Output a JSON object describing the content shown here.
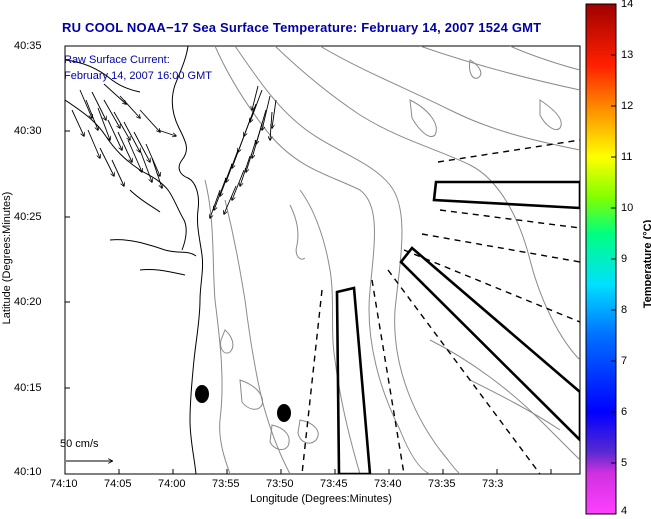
{
  "title": "RU COOL  NOAA−17  Sea Surface Temperature:  February 14, 2007 1524 GMT",
  "annotation": {
    "line1": "Raw Surface Current:",
    "line2": "February 14, 2007 16:00 GMT"
  },
  "scale_label": "50 cm/s",
  "x_axis": {
    "label": "Longitude (Degrees:Minutes)",
    "ticks": [
      "74:10",
      "74:05",
      "74:00",
      "73:55",
      "73:50",
      "73:45",
      "73:40",
      "73:35",
      "73:3"
    ]
  },
  "y_axis": {
    "label": "Latitude (Degrees:Minutes)",
    "ticks": [
      "40:35",
      "40:30",
      "40:25",
      "40:20",
      "40:15",
      "40:10"
    ]
  },
  "colorbar": {
    "label": "Temperature (°C)",
    "ticks": [
      "14",
      "13",
      "12",
      "11",
      "10",
      "9",
      "8",
      "7",
      "6",
      "5",
      "4"
    ],
    "colors": [
      "#ff40ff",
      "#5a2bd0",
      "#0000ff",
      "#0070ff",
      "#00e0ff",
      "#00ff80",
      "#80ff00",
      "#ffff00",
      "#ffa000",
      "#ff2000",
      "#a00000"
    ]
  },
  "map_features": {
    "markers": [
      "buoy-marker-1",
      "buoy-marker-2"
    ],
    "exclusion_zones": 3
  }
}
